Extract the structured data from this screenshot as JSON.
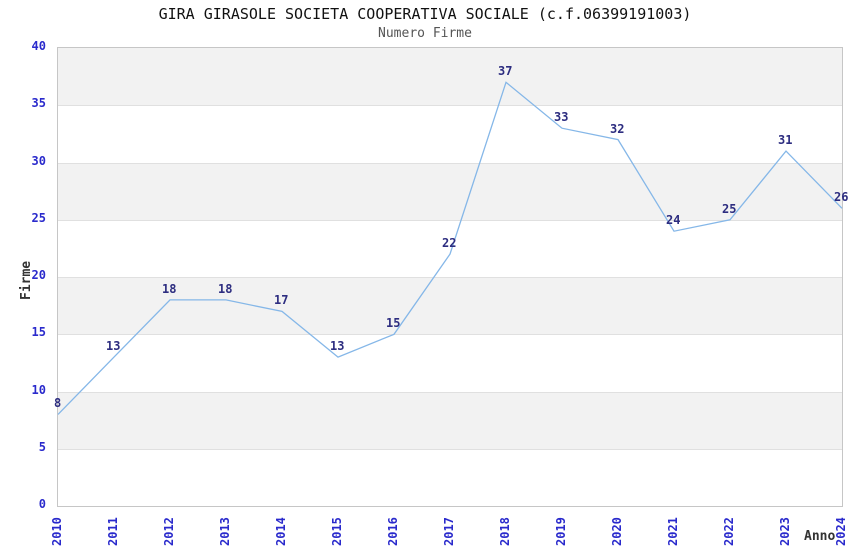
{
  "chart_data": {
    "type": "line",
    "title": "GIRA GIRASOLE SOCIETA COOPERATIVA SOCIALE (c.f.06399191003)",
    "subtitle": "Numero Firme",
    "xlabel": "Anno",
    "ylabel": "Firme",
    "categories": [
      "2010",
      "2011",
      "2012",
      "2013",
      "2014",
      "2015",
      "2016",
      "2017",
      "2018",
      "2019",
      "2020",
      "2021",
      "2022",
      "2023",
      "2024"
    ],
    "values": [
      8,
      13,
      18,
      18,
      17,
      13,
      15,
      22,
      37,
      33,
      32,
      24,
      25,
      31,
      26
    ],
    "ylim": [
      0,
      40
    ],
    "ytick_step": 5,
    "y_ticks": [
      0,
      5,
      10,
      15,
      20,
      25,
      30,
      35,
      40
    ],
    "grid": "alternating-horizontal-bands",
    "legend_position": "none",
    "colors": {
      "line": "#85b7e8",
      "data_label": "#2d2d80",
      "tick_label": "#2a2acc",
      "band_fill": "#f2f2f2",
      "band_line": "#e0e0e0",
      "plot_border": "#c6c6c6",
      "title": "#111111",
      "subtitle": "#555555",
      "axis_title": "#333333"
    }
  }
}
